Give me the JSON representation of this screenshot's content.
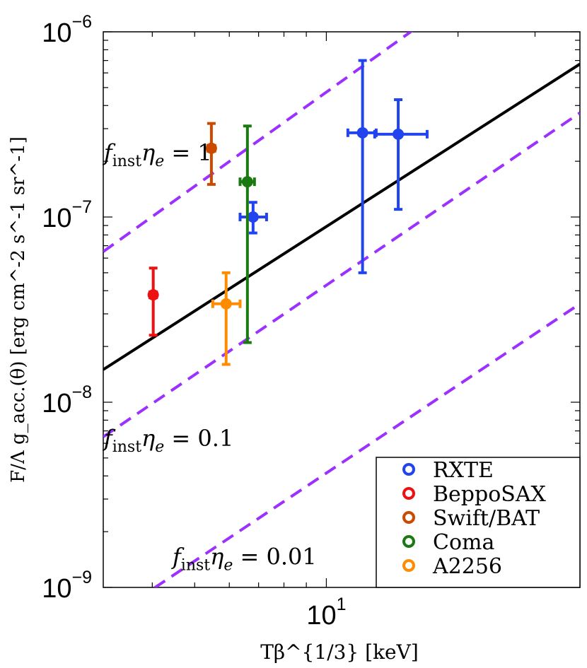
{
  "chart_data": {
    "type": "scatter",
    "xscale": "log",
    "yscale": "log",
    "xlim": [
      3.09,
      38
    ],
    "ylim": [
      1e-09,
      1e-06
    ],
    "xlabel": "Tβ^{1/3} [keV]",
    "ylabel": "F/Λ g_acc.(θ) [erg cm^-2 s^-1 sr^-1]",
    "x_ticks": [
      {
        "value": 10,
        "label": "10",
        "exp": "1"
      }
    ],
    "y_ticks": [
      {
        "value": 1e-09,
        "label": "10",
        "exp": "−9"
      },
      {
        "value": 1e-08,
        "label": "10",
        "exp": "−8"
      },
      {
        "value": 1e-07,
        "label": "10",
        "exp": "−7"
      },
      {
        "value": 1e-06,
        "label": "10",
        "exp": "−6"
      }
    ],
    "fit_line": {
      "color": "#000000",
      "points": [
        [
          3.09,
          1.5e-08
        ],
        [
          38,
          6.7e-07
        ]
      ]
    },
    "dashed_lines": [
      {
        "label": "f",
        "sub": "inst",
        "mid": "η",
        "msub": "e",
        "tail": " = 1",
        "anchor": [
          3.1,
          2.02e-07
        ],
        "color": "#9b30ff",
        "points": [
          [
            3.09,
            6.5e-08
          ],
          [
            38,
            4.5e-06
          ]
        ]
      },
      {
        "label": "f",
        "sub": "inst",
        "mid": "η",
        "msub": "e",
        "tail": " = 0.1",
        "anchor": [
          3.1,
          5.8e-09
        ],
        "color": "#9b30ff",
        "points": [
          [
            3.09,
            6.5e-09
          ],
          [
            38,
            3.65e-07
          ]
        ]
      },
      {
        "label": "f",
        "sub": "inst",
        "mid": "η",
        "msub": "e",
        "tail": " = 0.01",
        "anchor": [
          4.45,
          1.33e-09
        ],
        "color": "#9b30ff",
        "points": [
          [
            3.09,
            6.5e-10
          ],
          [
            38,
            3.4e-08
          ]
        ]
      }
    ],
    "series": [
      {
        "name": "RXTE",
        "color": "#2244ee",
        "points": [
          {
            "x": 6.8,
            "y": 1e-07,
            "xlo": 6.35,
            "xhi": 7.3,
            "ylo": 8.2e-08,
            "yhi": 1.2e-07
          },
          {
            "x": 12.1,
            "y": 2.85e-07,
            "xlo": 11.2,
            "xhi": 13.0,
            "ylo": 5e-08,
            "yhi": 7e-07
          },
          {
            "x": 14.6,
            "y": 2.8e-07,
            "xlo": 12.9,
            "xhi": 17.0,
            "ylo": 1.1e-07,
            "yhi": 4.3e-07
          }
        ]
      },
      {
        "name": "BeppoSAX",
        "color": "#ee1111",
        "points": [
          {
            "x": 4.02,
            "y": 3.8e-08,
            "xlo": 3.95,
            "xhi": 4.09,
            "ylo": 2.3e-08,
            "yhi": 5.3e-08
          }
        ]
      },
      {
        "name": "Swift/BAT",
        "color": "#cc4a00",
        "points": [
          {
            "x": 5.46,
            "y": 2.35e-07,
            "xlo": 5.36,
            "xhi": 5.56,
            "ylo": 1.5e-07,
            "yhi": 3.2e-07
          }
        ]
      },
      {
        "name": "Coma",
        "color": "#1a7a11",
        "points": [
          {
            "x": 6.6,
            "y": 1.55e-07,
            "xlo": 6.35,
            "xhi": 6.85,
            "ylo": 2.1e-08,
            "yhi": 3.1e-07
          }
        ]
      },
      {
        "name": "A2256",
        "color": "#ff8c00",
        "points": [
          {
            "x": 5.9,
            "y": 3.4e-08,
            "xlo": 5.5,
            "xhi": 6.35,
            "ylo": 1.6e-08,
            "yhi": 5e-08
          }
        ]
      }
    ],
    "legend": {
      "position": "bottom-right"
    }
  }
}
